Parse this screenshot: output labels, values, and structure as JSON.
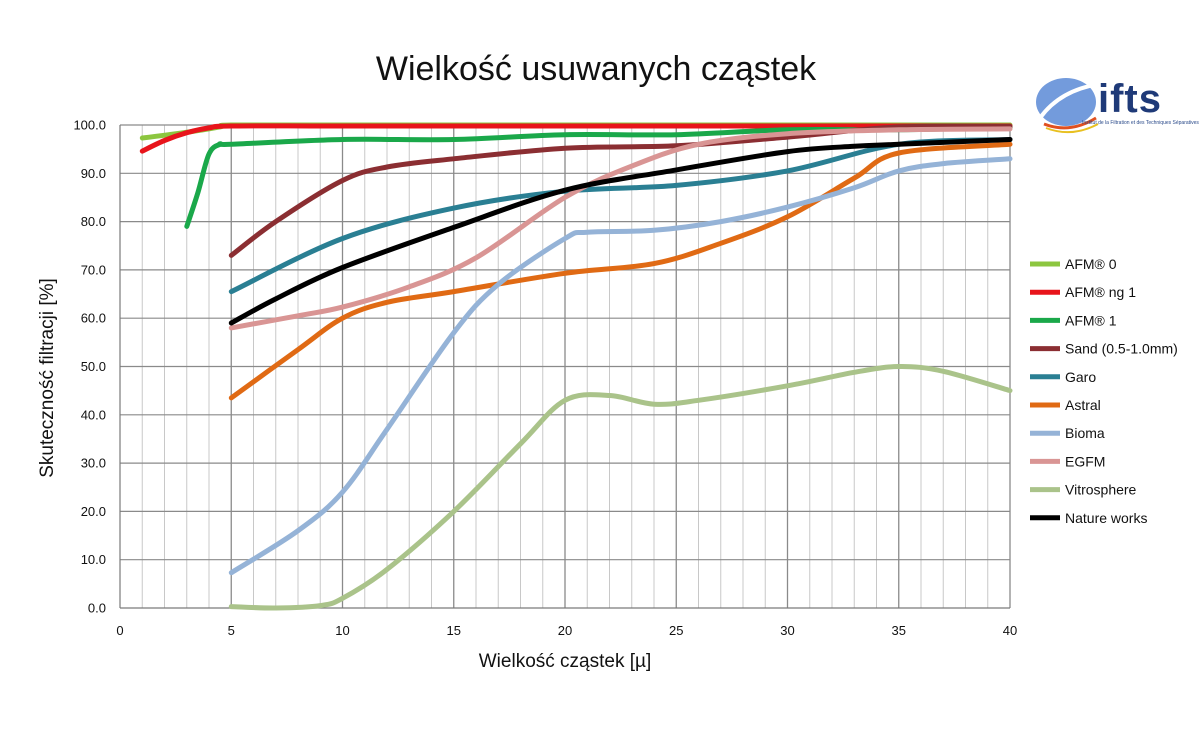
{
  "logo": {
    "text": "ifts",
    "subtitle": "Institut de la Filtration et des Techniques Séparatives"
  },
  "chart_data": {
    "type": "line",
    "title": "Wielkość usuwanych cząstek",
    "xlabel": "Wielkość cząstek [µ]",
    "ylabel": "Skuteczność filtracji [%]",
    "xlim": [
      0,
      40
    ],
    "ylim": [
      0,
      100
    ],
    "x_major_ticks": [
      0,
      5,
      10,
      15,
      20,
      25,
      30,
      35,
      40
    ],
    "x_tick_labels": [
      "0",
      "5",
      "10",
      "15",
      "20",
      "25",
      "30",
      "35",
      "40"
    ],
    "y_major_ticks": [
      0,
      10,
      20,
      30,
      40,
      50,
      60,
      70,
      80,
      90,
      100
    ],
    "y_tick_labels": [
      "0.0",
      "10.0",
      "20.0",
      "30.0",
      "40.0",
      "50.0",
      "60.0",
      "70.0",
      "80.0",
      "90.0",
      "100.0"
    ],
    "grid": true,
    "legend_position": "right",
    "series": [
      {
        "name": "AFM® 0",
        "color": "#8cc63f",
        "points": [
          [
            1,
            97.3
          ],
          [
            3,
            98.5
          ],
          [
            4.5,
            99.6
          ],
          [
            5,
            100
          ],
          [
            10,
            100
          ],
          [
            20,
            100
          ],
          [
            30,
            100
          ],
          [
            40,
            100
          ]
        ]
      },
      {
        "name": "AFM® ng 1",
        "color": "#e8141b",
        "points": [
          [
            1,
            94.6
          ],
          [
            2,
            96.8
          ],
          [
            3,
            98.4
          ],
          [
            4,
            99.4
          ],
          [
            5,
            99.8
          ],
          [
            10,
            99.8
          ],
          [
            20,
            99.8
          ],
          [
            30,
            99.8
          ],
          [
            40,
            99.8
          ]
        ]
      },
      {
        "name": "AFM® 1",
        "color": "#1aa84a",
        "points": [
          [
            3,
            79
          ],
          [
            3.5,
            86
          ],
          [
            4,
            94
          ],
          [
            4.5,
            96
          ],
          [
            5,
            96
          ],
          [
            10,
            97
          ],
          [
            15,
            97
          ],
          [
            20,
            98
          ],
          [
            25,
            98
          ],
          [
            30,
            99
          ],
          [
            35,
            99
          ],
          [
            40,
            99.5
          ]
        ]
      },
      {
        "name": "Sand (0.5-1.0mm)",
        "color": "#8b2e32",
        "points": [
          [
            5,
            73
          ],
          [
            7,
            80
          ],
          [
            10,
            88.5
          ],
          [
            12,
            91.3
          ],
          [
            15,
            93
          ],
          [
            20,
            95.2
          ],
          [
            25,
            95.7
          ],
          [
            30,
            97.5
          ],
          [
            35,
            99.6
          ],
          [
            40,
            99.7
          ]
        ]
      },
      {
        "name": "Garo",
        "color": "#2a7f93",
        "points": [
          [
            5,
            65.5
          ],
          [
            10,
            76.5
          ],
          [
            15,
            82.8
          ],
          [
            20,
            86.3
          ],
          [
            25,
            87.5
          ],
          [
            30,
            90.5
          ],
          [
            35,
            96
          ],
          [
            40,
            97
          ]
        ]
      },
      {
        "name": "Astral",
        "color": "#e06a14",
        "points": [
          [
            5,
            43.5
          ],
          [
            8,
            53.5
          ],
          [
            10,
            60
          ],
          [
            12,
            63.3
          ],
          [
            15,
            65.5
          ],
          [
            20,
            69.3
          ],
          [
            24,
            71.3
          ],
          [
            27,
            75.5
          ],
          [
            30,
            81
          ],
          [
            33,
            89
          ],
          [
            35,
            94.2
          ],
          [
            40,
            96
          ]
        ]
      },
      {
        "name": "Bioma",
        "color": "#95b3d7",
        "points": [
          [
            5,
            7.3
          ],
          [
            8,
            16
          ],
          [
            10,
            24
          ],
          [
            12,
            37
          ],
          [
            15,
            57
          ],
          [
            17,
            67
          ],
          [
            20,
            76.5
          ],
          [
            21,
            77.8
          ],
          [
            24,
            78.2
          ],
          [
            27,
            80
          ],
          [
            30,
            83
          ],
          [
            33,
            87
          ],
          [
            35,
            90.5
          ],
          [
            37,
            92
          ],
          [
            40,
            93
          ]
        ]
      },
      {
        "name": "EGFM",
        "color": "#d99594",
        "points": [
          [
            5,
            58
          ],
          [
            8,
            60.5
          ],
          [
            10,
            62.3
          ],
          [
            13,
            66.5
          ],
          [
            16,
            72.5
          ],
          [
            20,
            85
          ],
          [
            23,
            91.5
          ],
          [
            26,
            96
          ],
          [
            30,
            98.2
          ],
          [
            35,
            99
          ],
          [
            40,
            99.2
          ]
        ]
      },
      {
        "name": "Vitrosphere",
        "color": "#aac38a",
        "points": [
          [
            5,
            0.3
          ],
          [
            7,
            0
          ],
          [
            9,
            0.5
          ],
          [
            10,
            2
          ],
          [
            12,
            8
          ],
          [
            15,
            20
          ],
          [
            18,
            34
          ],
          [
            20,
            43
          ],
          [
            22,
            44
          ],
          [
            24,
            42.2
          ],
          [
            26,
            43
          ],
          [
            30,
            46
          ],
          [
            33,
            48.8
          ],
          [
            35,
            50
          ],
          [
            37,
            49
          ],
          [
            40,
            45
          ]
        ]
      },
      {
        "name": "Nature works",
        "color": "#000000",
        "points": [
          [
            5,
            59
          ],
          [
            7,
            64
          ],
          [
            10,
            70.5
          ],
          [
            15,
            78.8
          ],
          [
            20,
            86.5
          ],
          [
            25,
            90.7
          ],
          [
            30,
            94.5
          ],
          [
            33,
            95.6
          ],
          [
            35,
            96
          ],
          [
            40,
            97
          ]
        ]
      }
    ]
  }
}
